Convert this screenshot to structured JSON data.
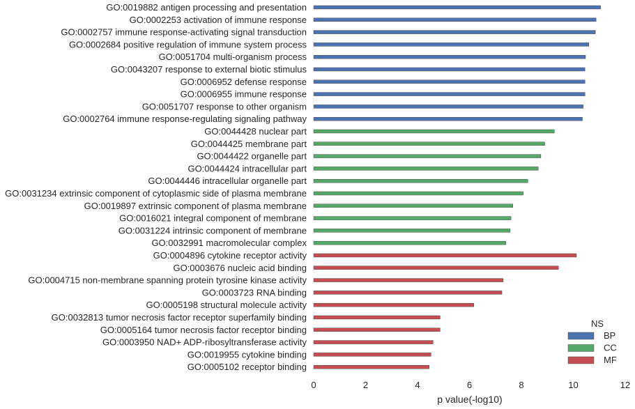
{
  "chart_data": {
    "type": "bar",
    "orientation": "horizontal",
    "xlabel": "p value(-log10)",
    "ylabel": "",
    "xlim": [
      0,
      12
    ],
    "xticks": [
      0,
      2,
      4,
      6,
      8,
      10,
      12
    ],
    "grid": false,
    "legend": {
      "title": "NS",
      "position": "bottom-right"
    },
    "series": [
      {
        "name": "BP",
        "color": "#4c72b0",
        "categories": [
          "GO:0019882 antigen processing and presentation",
          "GO:0002253 activation of immune response",
          "GO:0002757 immune response-activating signal transduction",
          "GO:0002684 positive regulation of immune system process",
          "GO:0051704 multi-organism process",
          "GO:0043207 response to external biotic stimulus",
          "GO:0006952 defense response",
          "GO:0006955 immune response",
          "GO:0051707 response to other organism",
          "GO:0002764 immune response-regulating signaling pathway"
        ],
        "values": [
          11.05,
          10.88,
          10.85,
          10.6,
          10.47,
          10.45,
          10.45,
          10.45,
          10.38,
          10.35
        ]
      },
      {
        "name": "CC",
        "color": "#55a868",
        "categories": [
          "GO:0044428 nuclear part",
          "GO:0044425 membrane part",
          "GO:0044422 organelle part",
          "GO:0044424 intracellular part",
          "GO:0044446 intracellular organelle part",
          "GO:0031234 extrinsic component of cytoplasmic side of plasma membrane",
          "GO:0019897 extrinsic component of plasma membrane",
          "GO:0016021 integral component of membrane",
          "GO:0031224 intrinsic component of membrane",
          "GO:0032991 macromolecular complex"
        ],
        "values": [
          9.27,
          8.9,
          8.75,
          8.65,
          8.25,
          8.07,
          7.67,
          7.6,
          7.57,
          7.4
        ]
      },
      {
        "name": "MF",
        "color": "#c44e52",
        "categories": [
          "GO:0004896 cytokine receptor activity",
          "GO:0003676 nucleic acid binding",
          "GO:0004715 non-membrane spanning protein tyrosine kinase activity",
          "GO:0003723 RNA binding",
          "GO:0005198 structural molecule activity",
          "GO:0032813 tumor necrosis factor receptor superfamily binding",
          "GO:0005164 tumor necrosis factor receptor binding",
          "GO:0003950 NAD+ ADP-ribosyltransferase activity",
          "GO:0019955 cytokine binding",
          "GO:0005102 receptor binding"
        ],
        "values": [
          10.12,
          9.43,
          7.3,
          7.25,
          6.17,
          4.87,
          4.87,
          4.6,
          4.52,
          4.45
        ]
      }
    ]
  }
}
